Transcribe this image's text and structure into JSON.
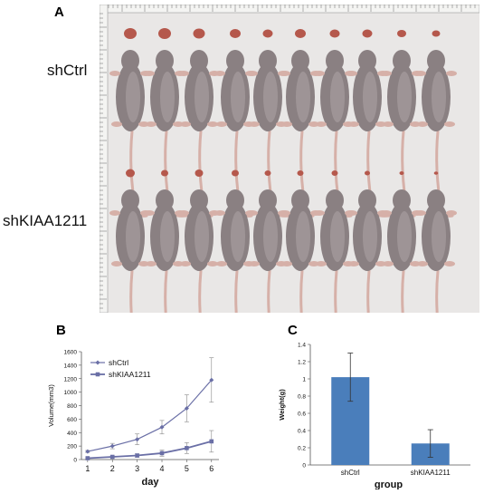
{
  "panel_a": {
    "letter": "A",
    "group_top": "shCtrl",
    "group_bottom": "shKIAA1211"
  },
  "panel_b": {
    "letter": "B"
  },
  "panel_c": {
    "letter": "C"
  },
  "colors": {
    "line_series": "#6a6fa6",
    "bar_fill": "#4a7ebb",
    "error_bar": "#333333",
    "photo_background": "#e9e7e6",
    "mouse_body": "#8a8082",
    "mouse_pink": "#d6b0a8",
    "tumor": "#b5584c"
  },
  "chart_data": [
    {
      "id": "B",
      "type": "line",
      "x": [
        1,
        2,
        3,
        4,
        5,
        6
      ],
      "series": [
        {
          "name": "shCtrl",
          "values": [
            120,
            200,
            300,
            480,
            760,
            1180
          ],
          "errors": [
            15,
            40,
            80,
            100,
            200,
            330
          ]
        },
        {
          "name": "shKIAA1211",
          "values": [
            20,
            40,
            60,
            95,
            170,
            270
          ],
          "errors": [
            8,
            12,
            25,
            45,
            80,
            160
          ]
        }
      ],
      "xlabel": "day",
      "ylabel": "Volume(mm3)",
      "xticks": [
        "1",
        "2",
        "3",
        "4",
        "5",
        "6"
      ],
      "yticks": [
        "0",
        "200",
        "400",
        "600",
        "800",
        "1000",
        "1200",
        "1400",
        "1600"
      ],
      "ylim": [
        0,
        1600
      ],
      "legend": "top-left",
      "grid": false
    },
    {
      "id": "C",
      "type": "bar",
      "categories": [
        "shCtrl",
        "shKIAA1211"
      ],
      "values": [
        1.02,
        0.25
      ],
      "errors": [
        0.28,
        0.16
      ],
      "xlabel": "group",
      "ylabel": "Weight(g)",
      "yticks": [
        "0",
        "0.2",
        "0.4",
        "0.6",
        "0.8",
        "1",
        "1.2",
        "1.4"
      ],
      "ylim": [
        0,
        1.4
      ],
      "grid": false
    }
  ]
}
